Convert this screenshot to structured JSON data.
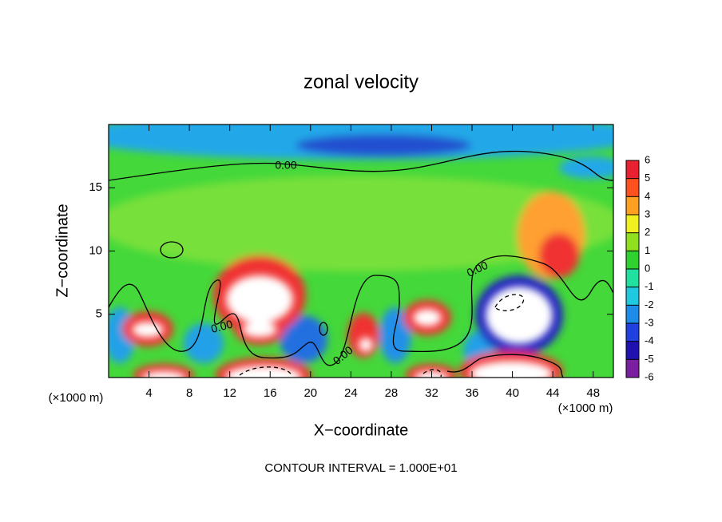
{
  "chart_data": {
    "type": "heatmap",
    "title": "zonal velocity",
    "x_label": "X−coordinate",
    "y_label": "Z−coordinate",
    "x_units": "(×1000 m)",
    "footer": "CONTOUR INTERVAL = 1.000E+01",
    "xlim": [
      0,
      50
    ],
    "xticks": [
      4,
      8,
      12,
      16,
      20,
      24,
      28,
      32,
      36,
      40,
      44,
      48
    ],
    "ylim": [
      0,
      20
    ],
    "yticks": [
      5,
      10,
      15
    ],
    "contour_labels": [
      "0.00",
      "0.00",
      "0.00",
      "0.00"
    ],
    "colorbar": {
      "ticks": [
        -6,
        -5,
        -4,
        -3,
        -2,
        -1,
        0,
        1,
        2,
        3,
        4,
        5,
        6
      ],
      "colors": [
        "#7a1fa0",
        "#2010b0",
        "#2040e0",
        "#1c8ce8",
        "#20c8e0",
        "#20e0a0",
        "#30d030",
        "#90e020",
        "#f0f020",
        "#ffa020",
        "#ff5020",
        "#e82030",
        "#f4a0a8"
      ]
    }
  }
}
